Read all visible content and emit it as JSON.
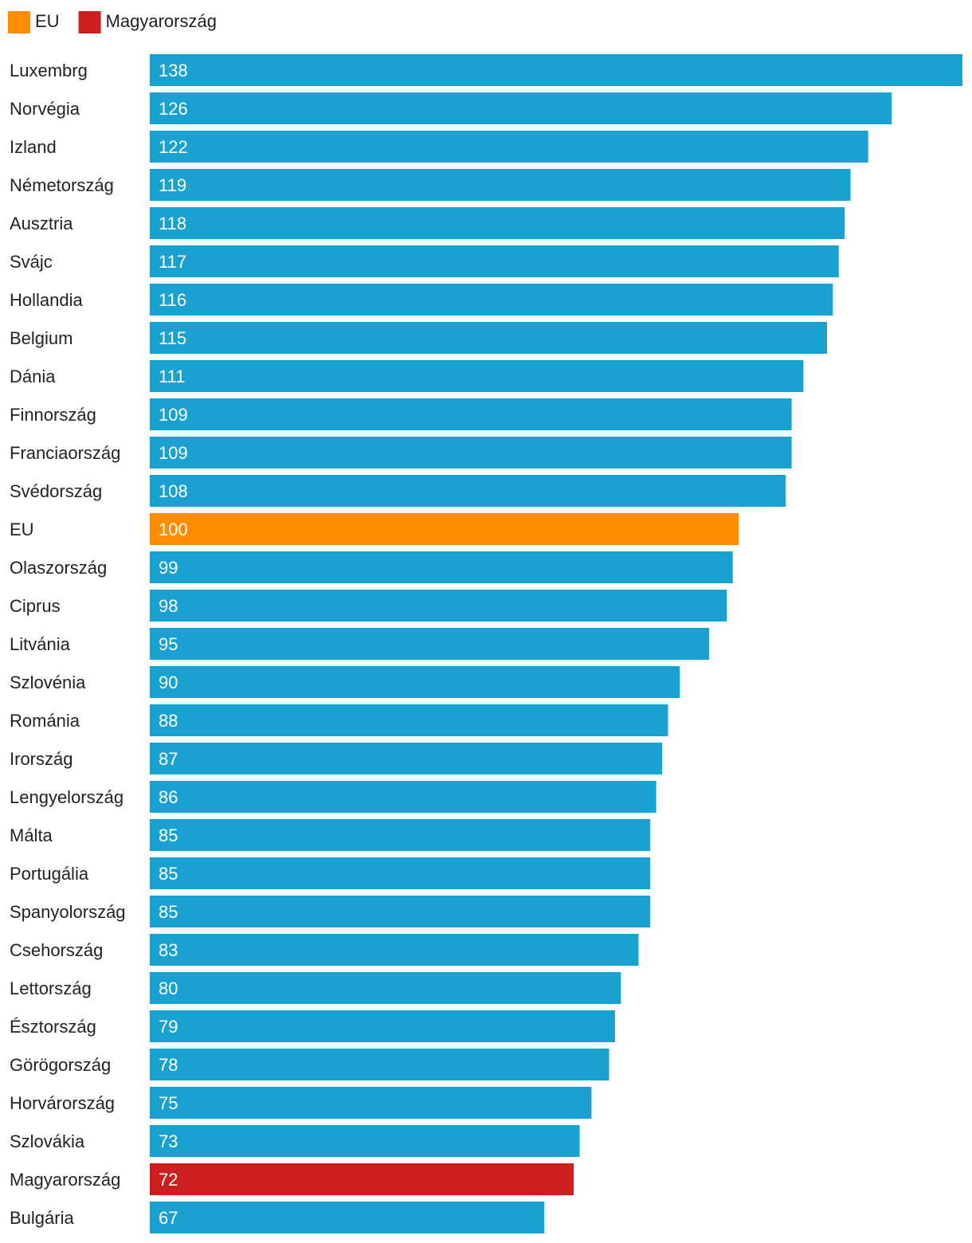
{
  "chart_data": {
    "type": "bar",
    "orientation": "horizontal",
    "legend": [
      {
        "label": "EU",
        "color": "#ff8c00"
      },
      {
        "label": "Magyarország",
        "color": "#cc1e1e"
      }
    ],
    "default_color": "#19a2cf",
    "xlim": [
      0,
      138
    ],
    "categories": [
      "Luxembrg",
      "Norvégia",
      "Izland",
      "Németország",
      "Ausztria",
      "Svájc",
      "Hollandia",
      "Belgium",
      "Dánia",
      "Finnország",
      "Franciaország",
      "Svédország",
      "EU",
      "Olaszország",
      "Ciprus",
      "Litvánia",
      "Szlovénia",
      "Románia",
      "Irország",
      "Lengyelország",
      "Málta",
      "Portugália",
      "Spanyolország",
      "Csehország",
      "Lettország",
      "Észtország",
      "Görögország",
      "Horvárország",
      "Szlovákia",
      "Magyarország",
      "Bulgária"
    ],
    "values": [
      138,
      126,
      122,
      119,
      118,
      117,
      116,
      115,
      111,
      109,
      109,
      108,
      100,
      99,
      98,
      95,
      90,
      88,
      87,
      86,
      85,
      85,
      85,
      83,
      80,
      79,
      78,
      75,
      73,
      72,
      67
    ],
    "highlights": {
      "EU": "#ff8c00",
      "Magyarország": "#cc1e1e"
    }
  }
}
